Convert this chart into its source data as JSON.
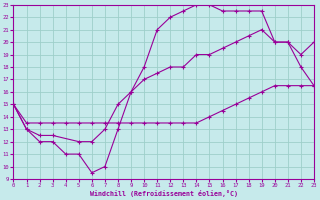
{
  "xlabel": "Windchill (Refroidissement éolien,°C)",
  "background_color": "#c6eaeb",
  "grid_color": "#9ecfca",
  "line_color": "#990099",
  "xlim": [
    0,
    23
  ],
  "ylim": [
    9,
    23
  ],
  "xticks": [
    0,
    1,
    2,
    3,
    4,
    5,
    6,
    7,
    8,
    9,
    10,
    11,
    12,
    13,
    14,
    15,
    16,
    17,
    18,
    19,
    20,
    21,
    22,
    23
  ],
  "yticks": [
    9,
    10,
    11,
    12,
    13,
    14,
    15,
    16,
    17,
    18,
    19,
    20,
    21,
    22,
    23
  ],
  "line1_x": [
    0,
    1,
    2,
    3,
    4,
    5,
    6,
    7,
    8,
    9,
    10,
    11,
    12,
    13,
    14,
    15,
    16,
    17,
    18,
    19,
    20,
    21,
    22,
    23
  ],
  "line1_y": [
    15,
    13,
    12,
    12,
    11,
    11,
    9.5,
    10,
    13,
    16,
    18,
    21,
    22,
    22.5,
    23,
    23,
    22.5,
    22.5,
    22.5,
    22.5,
    20,
    20,
    18,
    16.5
  ],
  "line2_x": [
    0,
    1,
    2,
    3,
    5,
    6,
    7,
    8,
    9,
    10,
    11,
    12,
    13,
    14,
    15,
    16,
    17,
    18,
    19,
    20,
    21,
    22,
    23
  ],
  "line2_y": [
    15,
    13,
    12.5,
    12.5,
    12,
    12,
    13,
    15,
    16,
    17,
    17.5,
    18,
    18,
    19,
    19,
    19.5,
    20,
    20.5,
    21,
    20,
    20,
    19,
    20
  ],
  "line3_x": [
    0,
    1,
    2,
    3,
    4,
    5,
    6,
    7,
    8,
    9,
    10,
    11,
    12,
    13,
    14,
    15,
    16,
    17,
    18,
    19,
    20,
    21,
    22,
    23
  ],
  "line3_y": [
    15,
    13.5,
    13.5,
    13.5,
    13.5,
    13.5,
    13.5,
    13.5,
    13.5,
    13.5,
    13.5,
    13.5,
    13.5,
    13.5,
    13.5,
    14,
    14.5,
    15,
    15.5,
    16,
    16.5,
    16.5,
    16.5,
    16.5
  ]
}
